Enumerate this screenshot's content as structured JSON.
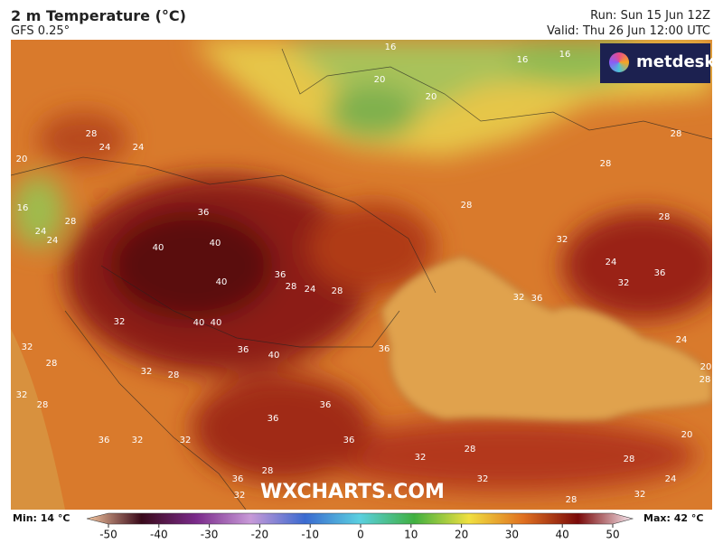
{
  "header": {
    "title": "2 m Temperature (°C)",
    "model": "GFS 0.25°",
    "run": "Run: Sun 15 Jun 12Z",
    "valid": "Valid: Thu 26 Jun 12:00 UTC"
  },
  "logo": "metdesk",
  "watermark": "WXCHARTS.COM",
  "map": {
    "contour_labels": [
      16,
      16,
      16,
      20,
      20,
      28,
      24,
      24,
      20,
      28,
      28,
      16,
      24,
      28,
      24,
      36,
      28,
      40,
      40,
      28,
      32,
      40,
      36,
      28,
      24,
      28,
      24,
      36,
      32,
      36,
      32,
      32,
      40,
      40,
      36,
      40,
      36,
      32,
      28,
      28,
      32,
      32,
      28,
      36,
      36,
      36,
      32,
      32,
      36,
      32,
      28,
      28,
      20,
      36,
      28,
      32,
      24,
      32,
      32,
      28,
      24,
      20,
      28
    ]
  },
  "colorbar": {
    "min_label": "Min: 14 °C",
    "max_label": "Max: 42 °C",
    "lim": [
      -50,
      50
    ],
    "ticks": [
      -50,
      -40,
      -30,
      -20,
      -10,
      0,
      10,
      20,
      30,
      40,
      50
    ]
  }
}
